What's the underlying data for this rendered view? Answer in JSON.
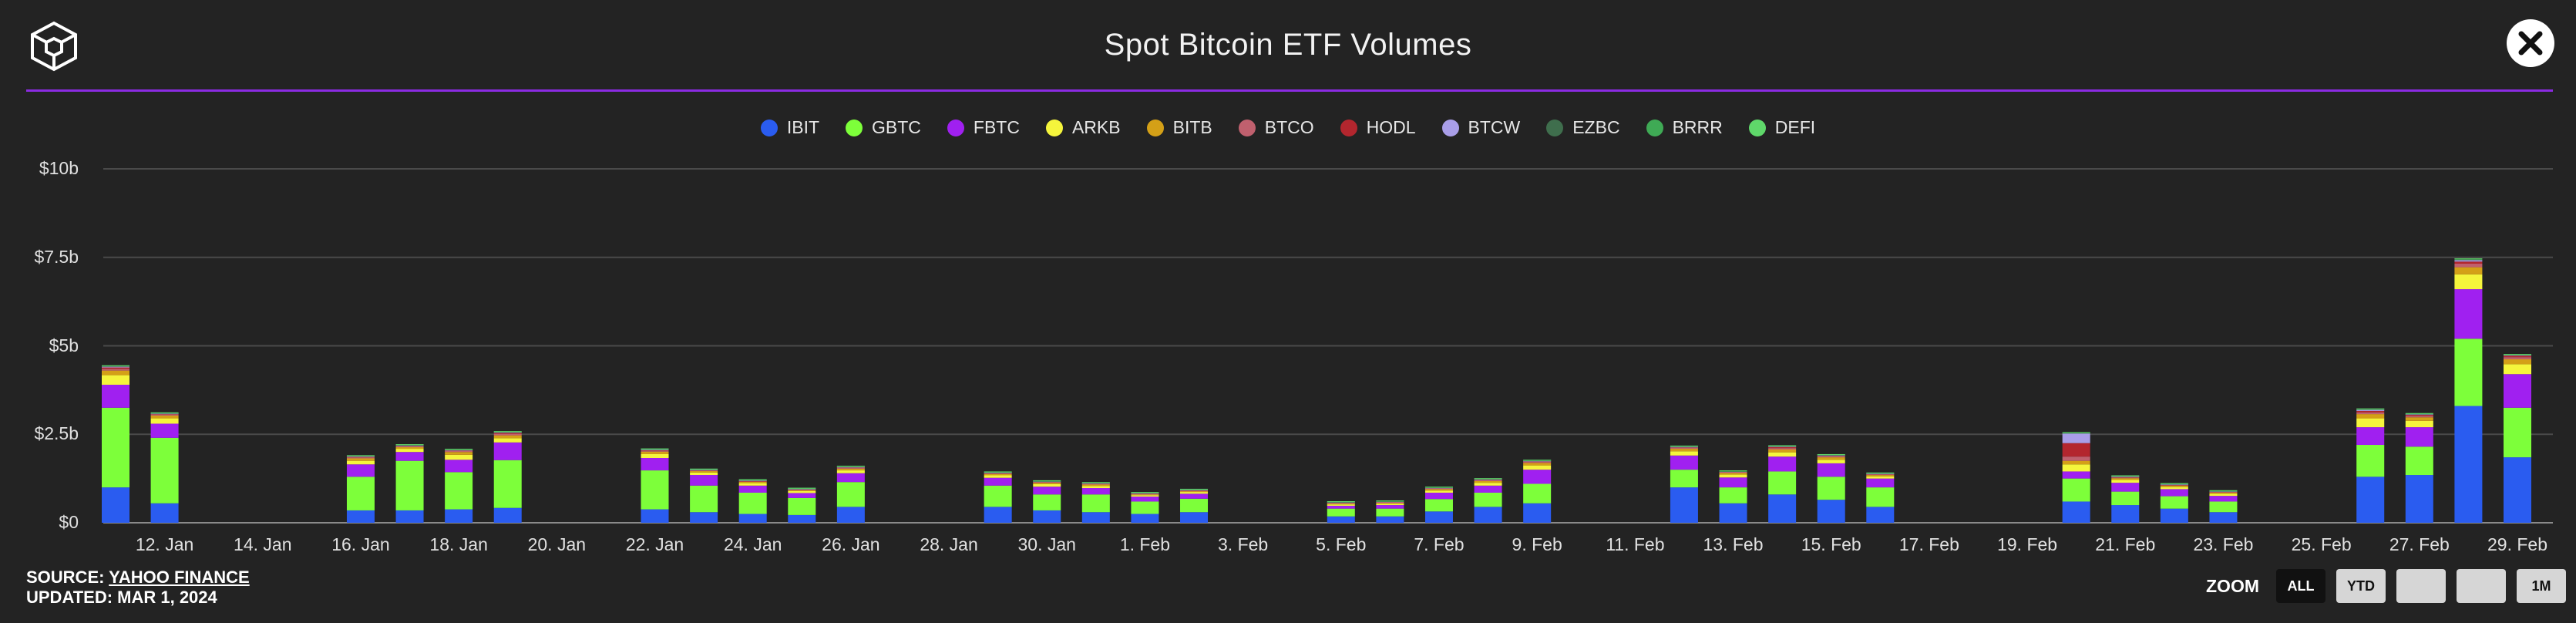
{
  "header": {
    "title": "Spot Bitcoin ETF Volumes"
  },
  "colors": {
    "accent": "#8b2be2",
    "grid": "#4a4a4a",
    "background": "#232323"
  },
  "footer": {
    "source_prefix": "SOURCE:",
    "source_name": "YAHOO FINANCE",
    "updated": "UPDATED: MAR 1, 2024"
  },
  "zoom": {
    "label": "ZOOM",
    "buttons": [
      {
        "label": "ALL",
        "active": true
      },
      {
        "label": "YTD",
        "active": false
      },
      {
        "label": "",
        "active": false
      },
      {
        "label": "",
        "active": false
      },
      {
        "label": "1M",
        "active": false
      }
    ]
  },
  "chart_data": {
    "type": "bar",
    "stacked": true,
    "title": "Spot Bitcoin ETF Volumes",
    "ylim": [
      0,
      10
    ],
    "yticks": [
      {
        "value": 0,
        "label": "$0"
      },
      {
        "value": 2.5,
        "label": "$2.5b"
      },
      {
        "value": 5,
        "label": "$5b"
      },
      {
        "value": 7.5,
        "label": "$7.5b"
      },
      {
        "value": 10,
        "label": "$10b"
      }
    ],
    "x_tick_labels": [
      "12. Jan",
      "14. Jan",
      "16. Jan",
      "18. Jan",
      "20. Jan",
      "22. Jan",
      "24. Jan",
      "26. Jan",
      "28. Jan",
      "30. Jan",
      "1. Feb",
      "3. Feb",
      "5. Feb",
      "7. Feb",
      "9. Feb",
      "11. Feb",
      "13. Feb",
      "15. Feb",
      "17. Feb",
      "19. Feb",
      "21. Feb",
      "23. Feb",
      "25. Feb",
      "27. Feb",
      "29. Feb"
    ],
    "legend_position": "top-center",
    "categories": [
      "11. Jan",
      "12. Jan",
      "16. Jan",
      "17. Jan",
      "18. Jan",
      "19. Jan",
      "22. Jan",
      "23. Jan",
      "24. Jan",
      "25. Jan",
      "26. Jan",
      "29. Jan",
      "30. Jan",
      "31. Jan",
      "1. Feb",
      "2. Feb",
      "5. Feb",
      "6. Feb",
      "7. Feb",
      "8. Feb",
      "9. Feb",
      "12. Feb",
      "13. Feb",
      "14. Feb",
      "15. Feb",
      "16. Feb",
      "20. Feb",
      "21. Feb",
      "22. Feb",
      "23. Feb",
      "26. Feb",
      "27. Feb",
      "28. Feb",
      "29. Feb"
    ],
    "series": [
      {
        "name": "IBIT",
        "color": "#2a5cf0",
        "values": [
          1.0,
          0.55,
          0.35,
          0.35,
          0.38,
          0.42,
          0.38,
          0.3,
          0.25,
          0.22,
          0.45,
          0.45,
          0.35,
          0.3,
          0.25,
          0.3,
          0.18,
          0.18,
          0.32,
          0.45,
          0.55,
          1.0,
          0.55,
          0.8,
          0.65,
          0.45,
          0.6,
          0.5,
          0.4,
          0.3,
          1.3,
          1.35,
          3.3,
          1.85
        ]
      },
      {
        "name": "GBTC",
        "color": "#7dff3a",
        "values": [
          2.25,
          1.85,
          0.95,
          1.4,
          1.05,
          1.35,
          1.1,
          0.75,
          0.6,
          0.48,
          0.7,
          0.6,
          0.45,
          0.5,
          0.35,
          0.38,
          0.22,
          0.22,
          0.35,
          0.4,
          0.55,
          0.5,
          0.45,
          0.65,
          0.65,
          0.55,
          0.65,
          0.38,
          0.35,
          0.3,
          0.9,
          0.8,
          1.9,
          1.4
        ]
      },
      {
        "name": "FBTC",
        "color": "#a020f0",
        "values": [
          0.65,
          0.4,
          0.35,
          0.25,
          0.35,
          0.5,
          0.35,
          0.3,
          0.2,
          0.14,
          0.25,
          0.22,
          0.22,
          0.18,
          0.14,
          0.14,
          0.08,
          0.1,
          0.18,
          0.2,
          0.4,
          0.4,
          0.28,
          0.42,
          0.38,
          0.25,
          0.2,
          0.25,
          0.2,
          0.16,
          0.5,
          0.55,
          1.4,
          0.95
        ]
      },
      {
        "name": "ARKB",
        "color": "#f5f53c",
        "values": [
          0.27,
          0.15,
          0.1,
          0.09,
          0.14,
          0.12,
          0.11,
          0.07,
          0.07,
          0.06,
          0.08,
          0.07,
          0.07,
          0.06,
          0.04,
          0.05,
          0.04,
          0.04,
          0.06,
          0.08,
          0.12,
          0.12,
          0.08,
          0.12,
          0.1,
          0.06,
          0.2,
          0.08,
          0.06,
          0.06,
          0.25,
          0.18,
          0.42,
          0.28
        ]
      },
      {
        "name": "BITB",
        "color": "#d4a017",
        "values": [
          0.13,
          0.08,
          0.07,
          0.05,
          0.08,
          0.08,
          0.07,
          0.04,
          0.04,
          0.03,
          0.05,
          0.04,
          0.04,
          0.04,
          0.03,
          0.03,
          0.03,
          0.03,
          0.04,
          0.05,
          0.07,
          0.07,
          0.05,
          0.08,
          0.07,
          0.04,
          0.1,
          0.05,
          0.04,
          0.04,
          0.12,
          0.1,
          0.2,
          0.14
        ]
      },
      {
        "name": "BTCO",
        "color": "#c0606e",
        "values": [
          0.05,
          0.03,
          0.03,
          0.02,
          0.03,
          0.04,
          0.03,
          0.02,
          0.02,
          0.01,
          0.02,
          0.02,
          0.02,
          0.02,
          0.01,
          0.01,
          0.01,
          0.01,
          0.02,
          0.02,
          0.03,
          0.03,
          0.02,
          0.04,
          0.03,
          0.02,
          0.12,
          0.02,
          0.02,
          0.01,
          0.05,
          0.04,
          0.1,
          0.06
        ]
      },
      {
        "name": "HODL",
        "color": "#b3262e",
        "values": [
          0.04,
          0.02,
          0.02,
          0.02,
          0.02,
          0.03,
          0.02,
          0.01,
          0.01,
          0.01,
          0.02,
          0.01,
          0.01,
          0.01,
          0.01,
          0.01,
          0.01,
          0.01,
          0.01,
          0.02,
          0.02,
          0.02,
          0.01,
          0.03,
          0.02,
          0.01,
          0.38,
          0.02,
          0.01,
          0.01,
          0.04,
          0.03,
          0.06,
          0.04
        ]
      },
      {
        "name": "BTCW",
        "color": "#a99ee8",
        "values": [
          0.02,
          0.01,
          0.01,
          0.01,
          0.01,
          0.02,
          0.01,
          0.01,
          0.01,
          0.01,
          0.01,
          0.01,
          0.01,
          0.01,
          0.01,
          0.01,
          0.01,
          0.01,
          0.01,
          0.01,
          0.01,
          0.01,
          0.01,
          0.02,
          0.01,
          0.01,
          0.28,
          0.01,
          0.01,
          0.01,
          0.03,
          0.02,
          0.04,
          0.02
        ]
      },
      {
        "name": "EZBC",
        "color": "#3f6e4d",
        "values": [
          0.02,
          0.01,
          0.01,
          0.01,
          0.01,
          0.01,
          0.01,
          0.01,
          0.01,
          0.01,
          0.01,
          0.01,
          0.01,
          0.01,
          0.01,
          0.01,
          0.01,
          0.01,
          0.01,
          0.01,
          0.01,
          0.01,
          0.01,
          0.01,
          0.01,
          0.01,
          0.01,
          0.01,
          0.01,
          0.01,
          0.02,
          0.01,
          0.02,
          0.01
        ]
      },
      {
        "name": "BRRR",
        "color": "#3faa55",
        "values": [
          0.01,
          0.01,
          0.01,
          0.01,
          0.01,
          0.01,
          0.01,
          0.01,
          0.01,
          0.01,
          0.01,
          0.01,
          0.01,
          0.01,
          0.01,
          0.01,
          0.01,
          0.01,
          0.01,
          0.01,
          0.01,
          0.01,
          0.01,
          0.01,
          0.01,
          0.01,
          0.01,
          0.01,
          0.01,
          0.01,
          0.01,
          0.01,
          0.02,
          0.01
        ]
      },
      {
        "name": "DEFI",
        "color": "#5fd86a",
        "values": [
          0.01,
          0.01,
          0.01,
          0.01,
          0.01,
          0.01,
          0.01,
          0.01,
          0.01,
          0.01,
          0.01,
          0.01,
          0.01,
          0.01,
          0.01,
          0.01,
          0.01,
          0.01,
          0.01,
          0.01,
          0.01,
          0.01,
          0.01,
          0.01,
          0.01,
          0.01,
          0.01,
          0.01,
          0.01,
          0.01,
          0.01,
          0.01,
          0.01,
          0.01
        ]
      }
    ]
  }
}
